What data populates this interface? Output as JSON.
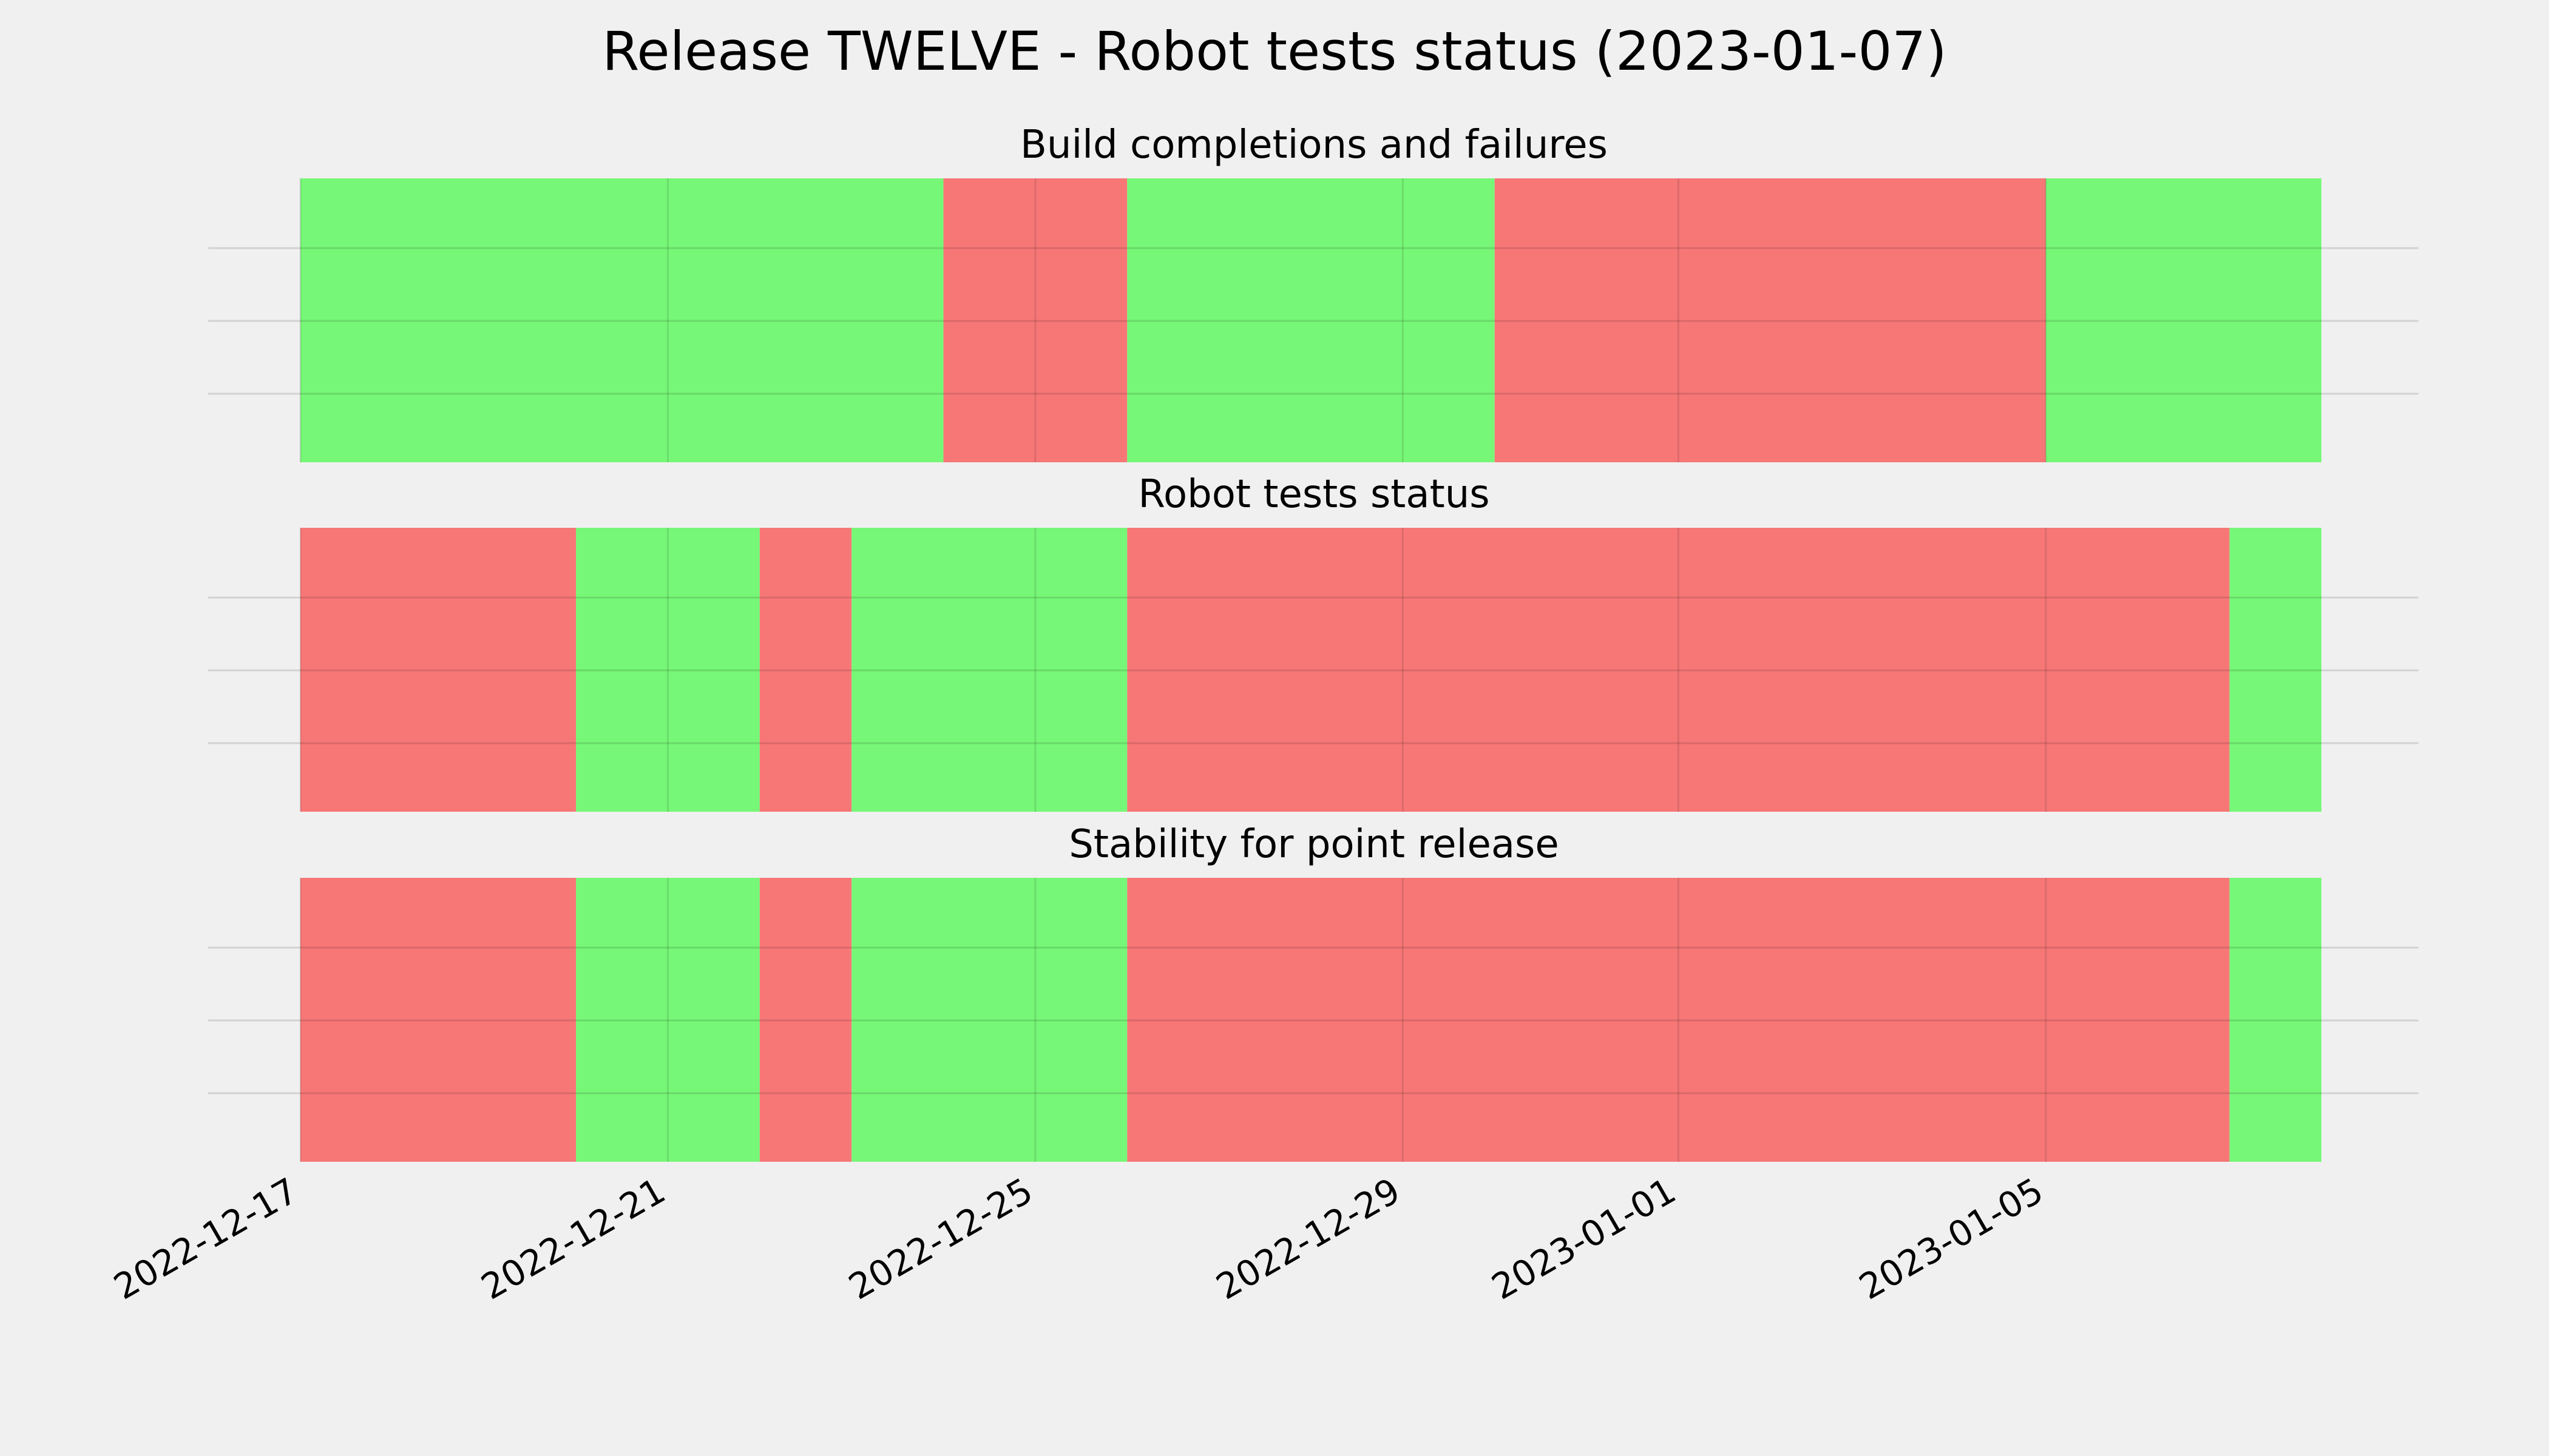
{
  "chart_data": {
    "type": "timeline",
    "title": "Release TWELVE - Robot tests status (2023-01-07)",
    "x_ticks": [
      "2022-12-17",
      "2022-12-21",
      "2022-12-25",
      "2022-12-29",
      "2023-01-01",
      "2023-01-05"
    ],
    "xlim": [
      "2022-12-17",
      "2023-01-08"
    ],
    "grid": true,
    "colors": {
      "pass": "#77f777",
      "fail": "#f77777"
    },
    "panels": [
      {
        "subtitle": "Build completions and failures",
        "segments": [
          {
            "start": "2022-12-17",
            "end": "2022-12-24",
            "status": "pass"
          },
          {
            "start": "2022-12-24",
            "end": "2022-12-26",
            "status": "fail"
          },
          {
            "start": "2022-12-26",
            "end": "2022-12-30",
            "status": "pass"
          },
          {
            "start": "2022-12-30",
            "end": "2023-01-05",
            "status": "fail"
          },
          {
            "start": "2023-01-05",
            "end": "2023-01-08",
            "status": "pass"
          }
        ]
      },
      {
        "subtitle": "Robot tests status",
        "segments": [
          {
            "start": "2022-12-17",
            "end": "2022-12-20",
            "status": "fail"
          },
          {
            "start": "2022-12-20",
            "end": "2022-12-22",
            "status": "pass"
          },
          {
            "start": "2022-12-22",
            "end": "2022-12-23",
            "status": "fail"
          },
          {
            "start": "2022-12-23",
            "end": "2022-12-26",
            "status": "pass"
          },
          {
            "start": "2022-12-26",
            "end": "2023-01-07",
            "status": "fail"
          },
          {
            "start": "2023-01-07",
            "end": "2023-01-08",
            "status": "pass"
          }
        ]
      },
      {
        "subtitle": "Stability for point release",
        "segments": [
          {
            "start": "2022-12-17",
            "end": "2022-12-20",
            "status": "fail"
          },
          {
            "start": "2022-12-20",
            "end": "2022-12-22",
            "status": "pass"
          },
          {
            "start": "2022-12-22",
            "end": "2022-12-23",
            "status": "fail"
          },
          {
            "start": "2022-12-23",
            "end": "2022-12-26",
            "status": "pass"
          },
          {
            "start": "2022-12-26",
            "end": "2023-01-07",
            "status": "fail"
          },
          {
            "start": "2023-01-07",
            "end": "2023-01-08",
            "status": "pass"
          }
        ]
      }
    ]
  }
}
